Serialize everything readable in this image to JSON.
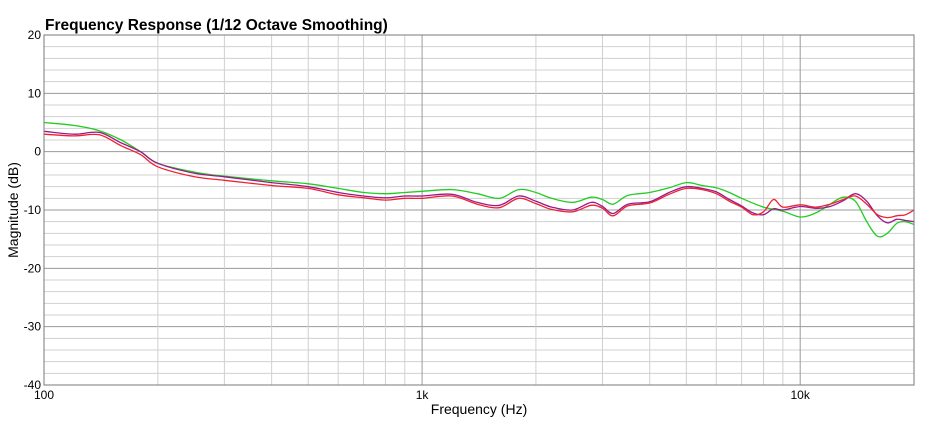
{
  "chart_data": {
    "type": "line",
    "title": "Frequency Response (1/12 Octave Smoothing)",
    "xlabel": "Frequency (Hz)",
    "ylabel": "Magnitude (dB)",
    "x_scale": "log",
    "xlim": [
      100,
      20000
    ],
    "ylim": [
      -40,
      20
    ],
    "x_ticks": [
      {
        "value": 100,
        "label": "100"
      },
      {
        "value": 1000,
        "label": "1k"
      },
      {
        "value": 10000,
        "label": "10k"
      }
    ],
    "y_ticks": [
      {
        "value": 20,
        "label": "20"
      },
      {
        "value": 10,
        "label": "10"
      },
      {
        "value": 0,
        "label": "0"
      },
      {
        "value": -10,
        "label": "-10"
      },
      {
        "value": -20,
        "label": "-20"
      },
      {
        "value": -30,
        "label": "-30"
      },
      {
        "value": -40,
        "label": "-40"
      }
    ],
    "grid": true,
    "legend": "none",
    "series": [
      {
        "color": "#22cc22",
        "points": [
          [
            100,
            5
          ],
          [
            120,
            4.5
          ],
          [
            140,
            3.6
          ],
          [
            160,
            2
          ],
          [
            180,
            0
          ],
          [
            200,
            -2
          ],
          [
            250,
            -3.5
          ],
          [
            300,
            -4.2
          ],
          [
            400,
            -5
          ],
          [
            500,
            -5.5
          ],
          [
            600,
            -6.3
          ],
          [
            700,
            -7
          ],
          [
            800,
            -7.2
          ],
          [
            900,
            -7
          ],
          [
            1000,
            -6.8
          ],
          [
            1200,
            -6.5
          ],
          [
            1400,
            -7.2
          ],
          [
            1600,
            -8
          ],
          [
            1800,
            -6.5
          ],
          [
            2000,
            -7
          ],
          [
            2200,
            -8
          ],
          [
            2500,
            -8.7
          ],
          [
            2800,
            -7.8
          ],
          [
            3000,
            -8.2
          ],
          [
            3200,
            -9
          ],
          [
            3500,
            -7.5
          ],
          [
            4000,
            -7
          ],
          [
            4500,
            -6.2
          ],
          [
            5000,
            -5.3
          ],
          [
            5500,
            -5.8
          ],
          [
            6000,
            -6.2
          ],
          [
            6500,
            -7
          ],
          [
            7000,
            -8
          ],
          [
            8000,
            -9.5
          ],
          [
            9000,
            -10.2
          ],
          [
            10000,
            -11.2
          ],
          [
            11000,
            -10.5
          ],
          [
            12000,
            -9
          ],
          [
            13000,
            -7.8
          ],
          [
            14000,
            -8.5
          ],
          [
            15000,
            -12
          ],
          [
            16000,
            -14.5
          ],
          [
            17000,
            -14
          ],
          [
            18000,
            -12.3
          ],
          [
            19000,
            -12
          ],
          [
            20000,
            -12.5
          ]
        ]
      },
      {
        "color": "#9a1a8a",
        "points": [
          [
            100,
            3.5
          ],
          [
            120,
            3
          ],
          [
            140,
            3.3
          ],
          [
            160,
            1.5
          ],
          [
            180,
            0
          ],
          [
            200,
            -2
          ],
          [
            250,
            -3.7
          ],
          [
            300,
            -4.3
          ],
          [
            400,
            -5.3
          ],
          [
            500,
            -6
          ],
          [
            600,
            -7
          ],
          [
            700,
            -7.6
          ],
          [
            800,
            -7.9
          ],
          [
            900,
            -7.6
          ],
          [
            1000,
            -7.6
          ],
          [
            1200,
            -7.3
          ],
          [
            1400,
            -8.7
          ],
          [
            1600,
            -9.2
          ],
          [
            1800,
            -7.6
          ],
          [
            2000,
            -8.5
          ],
          [
            2200,
            -9.5
          ],
          [
            2500,
            -10
          ],
          [
            2800,
            -8.7
          ],
          [
            3000,
            -9.4
          ],
          [
            3200,
            -10.6
          ],
          [
            3500,
            -9
          ],
          [
            4000,
            -8.6
          ],
          [
            4500,
            -7
          ],
          [
            5000,
            -6
          ],
          [
            5500,
            -6.3
          ],
          [
            6000,
            -6.9
          ],
          [
            6500,
            -8.2
          ],
          [
            7000,
            -9.3
          ],
          [
            7500,
            -10.5
          ],
          [
            8000,
            -10.8
          ],
          [
            8500,
            -9.8
          ],
          [
            9000,
            -10
          ],
          [
            10000,
            -9.4
          ],
          [
            11000,
            -9.7
          ],
          [
            12000,
            -9.4
          ],
          [
            13000,
            -8.4
          ],
          [
            14000,
            -7.2
          ],
          [
            15000,
            -8.5
          ],
          [
            16000,
            -11
          ],
          [
            17000,
            -12.2
          ],
          [
            18000,
            -11.6
          ],
          [
            19000,
            -11.8
          ],
          [
            20000,
            -12
          ]
        ]
      },
      {
        "color": "#ee2233",
        "points": [
          [
            100,
            3
          ],
          [
            120,
            2.7
          ],
          [
            140,
            2.9
          ],
          [
            160,
            1
          ],
          [
            180,
            -0.5
          ],
          [
            200,
            -2.6
          ],
          [
            250,
            -4.3
          ],
          [
            300,
            -4.9
          ],
          [
            400,
            -5.8
          ],
          [
            500,
            -6.3
          ],
          [
            600,
            -7.4
          ],
          [
            700,
            -7.9
          ],
          [
            800,
            -8.3
          ],
          [
            900,
            -8
          ],
          [
            1000,
            -8
          ],
          [
            1200,
            -7.6
          ],
          [
            1400,
            -9
          ],
          [
            1600,
            -9.6
          ],
          [
            1800,
            -8
          ],
          [
            2000,
            -8.9
          ],
          [
            2200,
            -9.9
          ],
          [
            2500,
            -10.3
          ],
          [
            2800,
            -9.2
          ],
          [
            3000,
            -9.7
          ],
          [
            3200,
            -11
          ],
          [
            3500,
            -9.3
          ],
          [
            4000,
            -8.8
          ],
          [
            4500,
            -7.3
          ],
          [
            5000,
            -6.3
          ],
          [
            5500,
            -6.5
          ],
          [
            6000,
            -7.2
          ],
          [
            6500,
            -8.5
          ],
          [
            7000,
            -9.5
          ],
          [
            7500,
            -10.8
          ],
          [
            8000,
            -10.3
          ],
          [
            8500,
            -8.2
          ],
          [
            9000,
            -9.5
          ],
          [
            10000,
            -9.1
          ],
          [
            11000,
            -9.5
          ],
          [
            12000,
            -9
          ],
          [
            13000,
            -8.2
          ],
          [
            14000,
            -7.6
          ],
          [
            15000,
            -9
          ],
          [
            16000,
            -10.8
          ],
          [
            17000,
            -11.3
          ],
          [
            18000,
            -11
          ],
          [
            19000,
            -10.8
          ],
          [
            20000,
            -10
          ]
        ]
      }
    ]
  }
}
